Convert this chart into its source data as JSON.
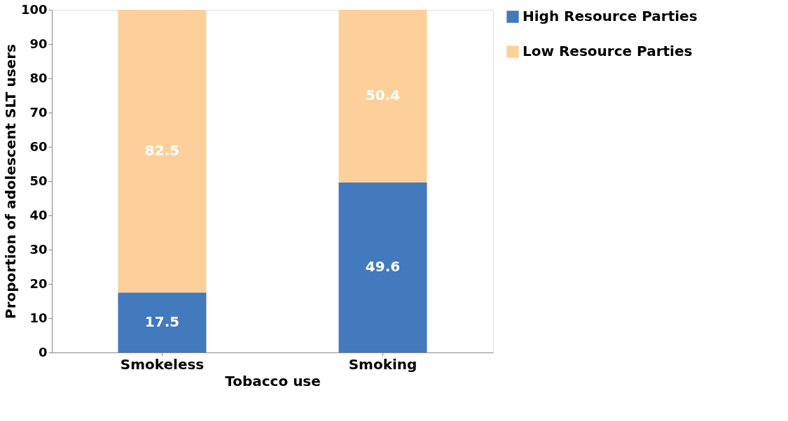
{
  "chart_data": {
    "type": "bar",
    "stacked": true,
    "xlabel": "Tobacco use",
    "ylabel": "Proportion of adolescent SLT users",
    "categories": [
      "Smokeless",
      "Smoking"
    ],
    "series": [
      {
        "name": "High Resource Parties",
        "color": "#4379bd",
        "values": [
          17.5,
          49.6
        ]
      },
      {
        "name": "Low Resource Parties",
        "color": "#fdd09b",
        "values": [
          82.5,
          50.4
        ]
      }
    ],
    "ylim": [
      0,
      100
    ],
    "yticks": [
      0,
      10,
      20,
      30,
      40,
      50,
      60,
      70,
      80,
      90,
      100
    ],
    "data_labels": true,
    "grid": false,
    "legend": "right"
  }
}
